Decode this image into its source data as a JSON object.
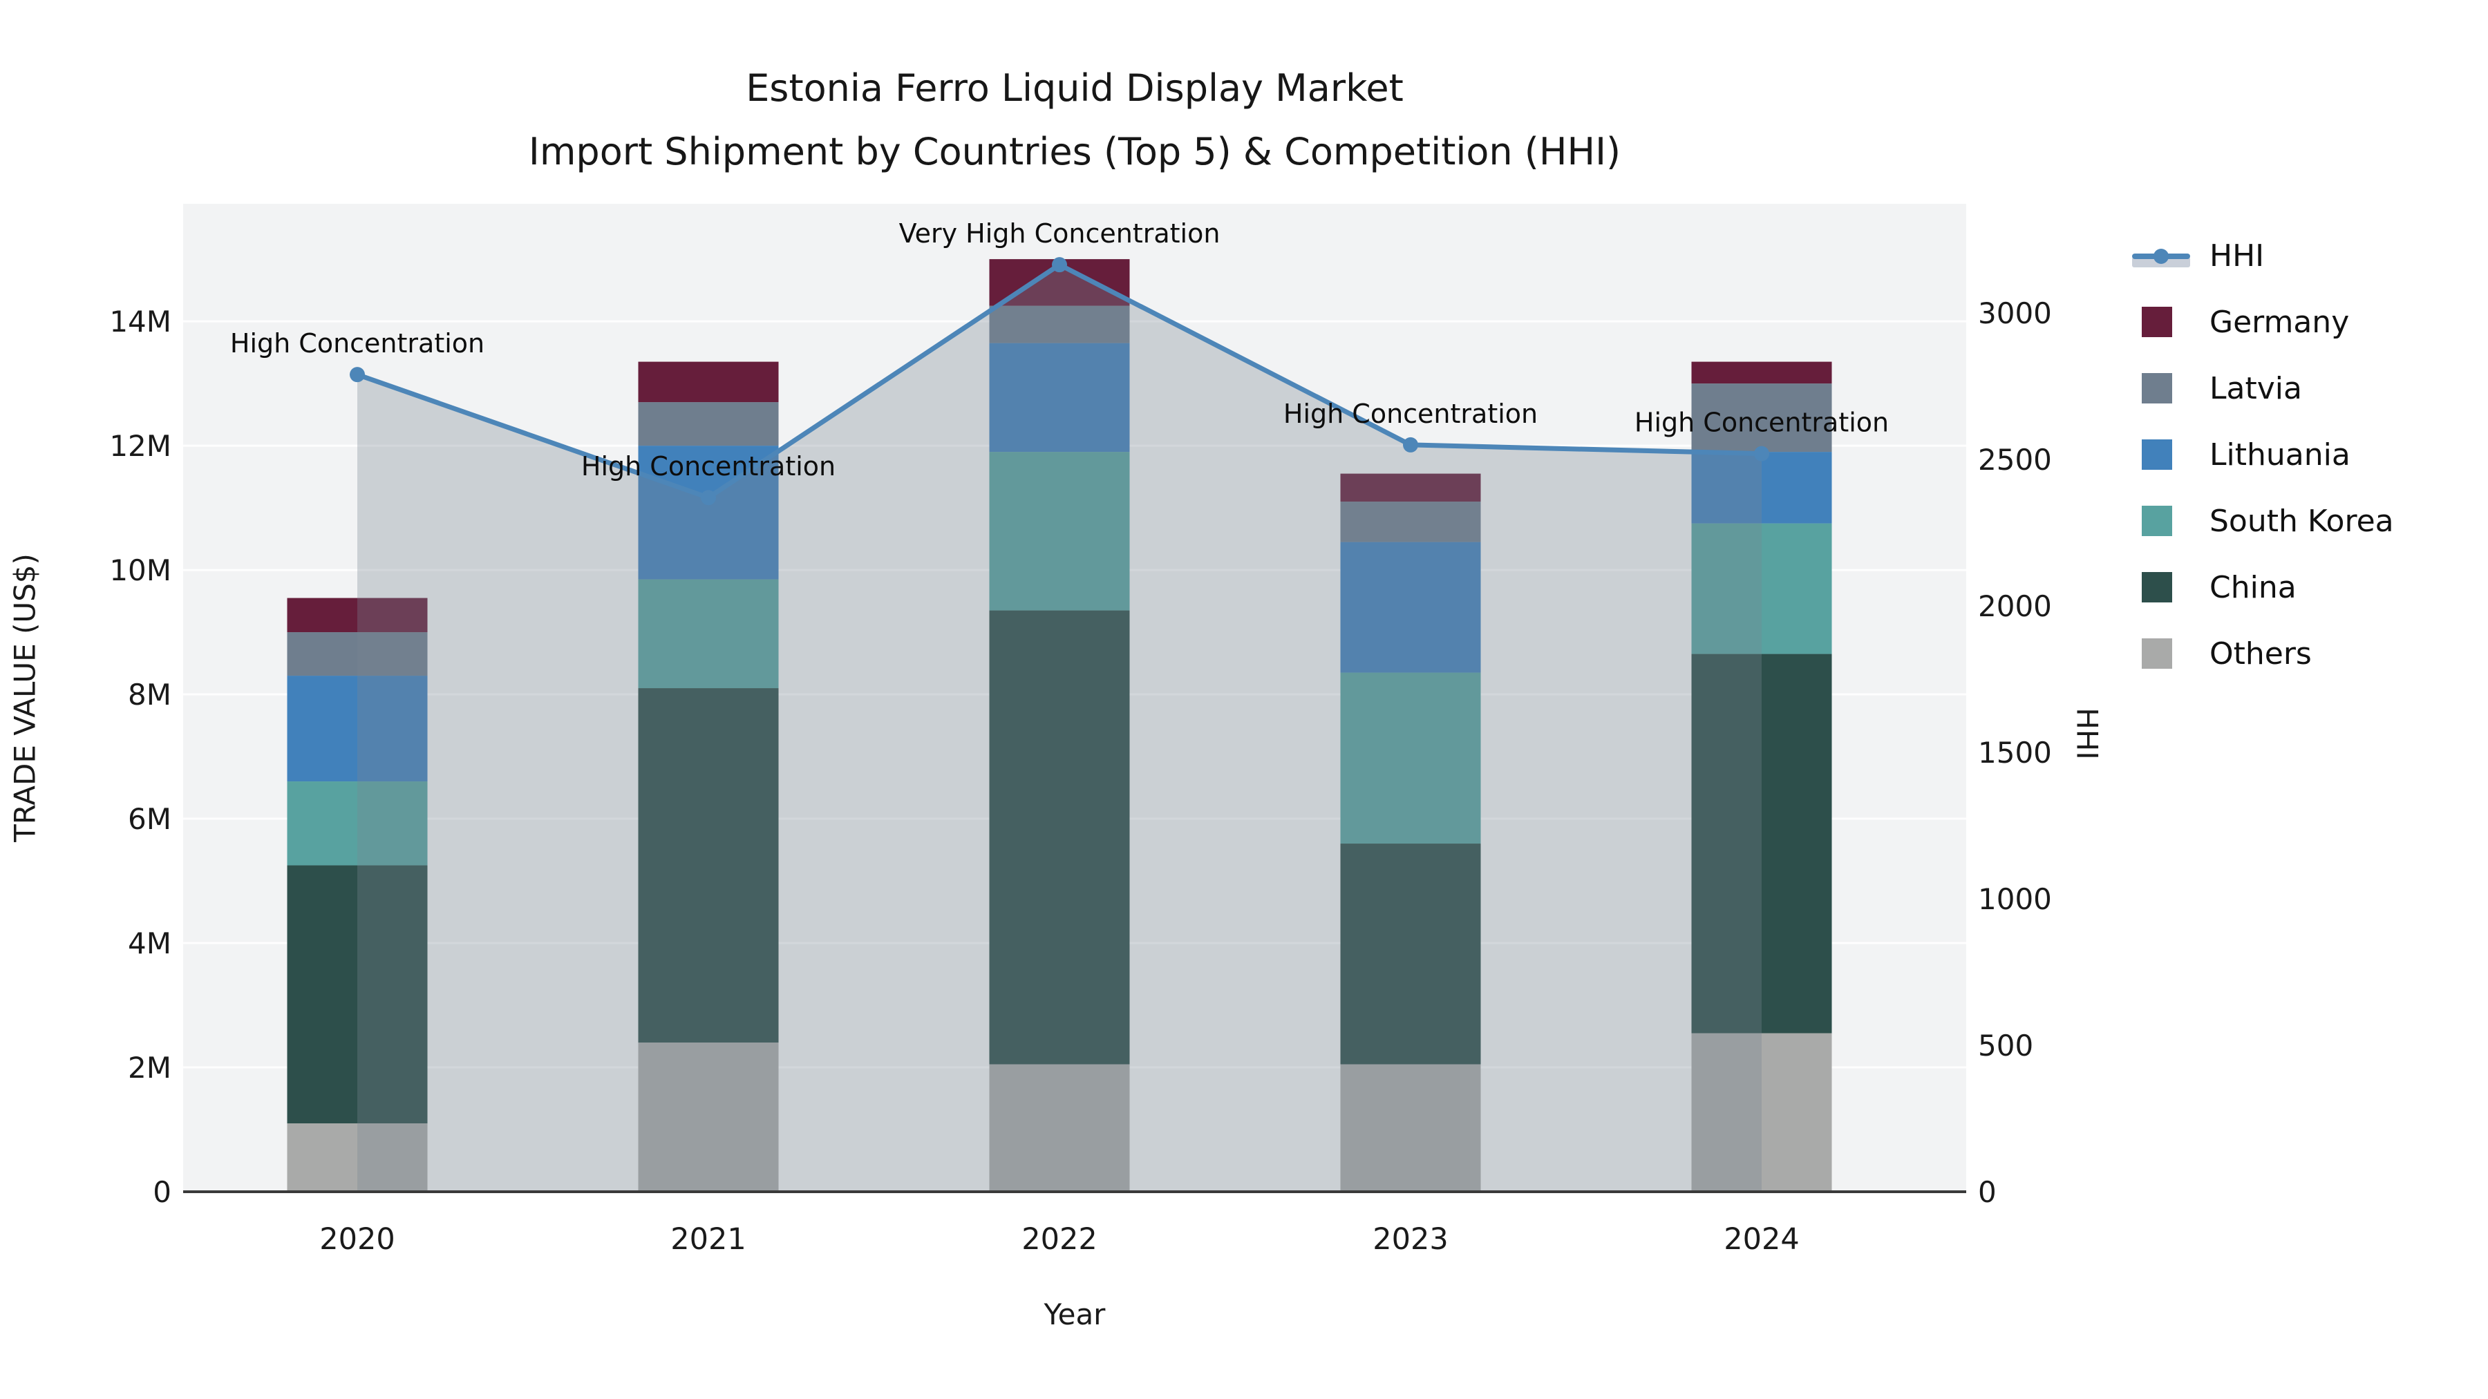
{
  "title": {
    "line1": "Estonia Ferro Liquid Display Market",
    "line2": "Import Shipment by Countries (Top 5) & Competition (HHI)"
  },
  "chart_data": {
    "type": "bar+line",
    "subtype": "stacked-bars-with-secondary-axis-line-and-area-fill",
    "categories": [
      "2020",
      "2021",
      "2022",
      "2023",
      "2024"
    ],
    "stack_order_bottom_to_top": [
      "Others",
      "China",
      "South Korea",
      "Lithuania",
      "Latvia",
      "Germany"
    ],
    "series": [
      {
        "name": "Germany",
        "color": "#661e3b",
        "values_musd": [
          0.55,
          0.65,
          0.75,
          0.45,
          0.35
        ]
      },
      {
        "name": "Latvia",
        "color": "#6f7e8e",
        "values_musd": [
          0.7,
          0.7,
          0.6,
          0.65,
          1.1
        ]
      },
      {
        "name": "Lithuania",
        "color": "#4181bb",
        "values_musd": [
          1.7,
          2.15,
          1.75,
          2.1,
          1.15
        ]
      },
      {
        "name": "South Korea",
        "color": "#58a2a0",
        "values_musd": [
          1.35,
          1.75,
          2.55,
          2.75,
          2.1
        ]
      },
      {
        "name": "China",
        "color": "#2d4f4b",
        "values_musd": [
          4.15,
          5.7,
          7.3,
          3.55,
          6.1
        ]
      },
      {
        "name": "Others",
        "color": "#a9aaa9",
        "values_musd": [
          1.1,
          2.4,
          2.05,
          2.05,
          2.55
        ]
      }
    ],
    "bar_totals_musd": [
      9.55,
      13.35,
      15.0,
      11.55,
      13.35
    ],
    "line": {
      "name": "HHI",
      "color": "#4d86b8",
      "values": [
        2790,
        2370,
        3165,
        2550,
        2520
      ]
    },
    "area_fill_color": "rgba(121,134,147,0.32)",
    "annotations": [
      {
        "year": "2020",
        "text": "High Concentration"
      },
      {
        "year": "2021",
        "text": "High Concentration"
      },
      {
        "year": "2022",
        "text": "Very High Concentration"
      },
      {
        "year": "2023",
        "text": "High Concentration"
      },
      {
        "year": "2024",
        "text": "High Concentration"
      }
    ],
    "axes": {
      "left": {
        "label": "TRADE VALUE (US$)",
        "ticks": [
          "0",
          "2M",
          "4M",
          "6M",
          "8M",
          "10M",
          "12M",
          "14M"
        ],
        "tick_values": [
          0,
          2,
          4,
          6,
          8,
          10,
          12,
          14
        ],
        "max": 15.89
      },
      "right": {
        "label": "HHI",
        "ticks": [
          "0",
          "500",
          "1000",
          "1500",
          "2000",
          "2500",
          "3000"
        ],
        "tick_values": [
          0,
          500,
          1000,
          1500,
          2000,
          2500,
          3000
        ],
        "max": 3373
      },
      "x": {
        "label": "Year",
        "grid": false
      }
    },
    "plot_background": "#f2f3f4",
    "gridline_color": "rgba(255,255,255,0.9)",
    "spine_color": "#3a3a3a",
    "legend_position": "right"
  },
  "legend": {
    "items": [
      {
        "label": "HHI",
        "type": "line"
      },
      {
        "label": "Germany",
        "type": "swatch",
        "color": "#661e3b"
      },
      {
        "label": "Latvia",
        "type": "swatch",
        "color": "#6f7e8e"
      },
      {
        "label": "Lithuania",
        "type": "swatch",
        "color": "#4181bb"
      },
      {
        "label": "South Korea",
        "type": "swatch",
        "color": "#58a2a0"
      },
      {
        "label": "China",
        "type": "swatch",
        "color": "#2d4f4b"
      },
      {
        "label": "Others",
        "type": "swatch",
        "color": "#a9aaa9"
      }
    ]
  }
}
